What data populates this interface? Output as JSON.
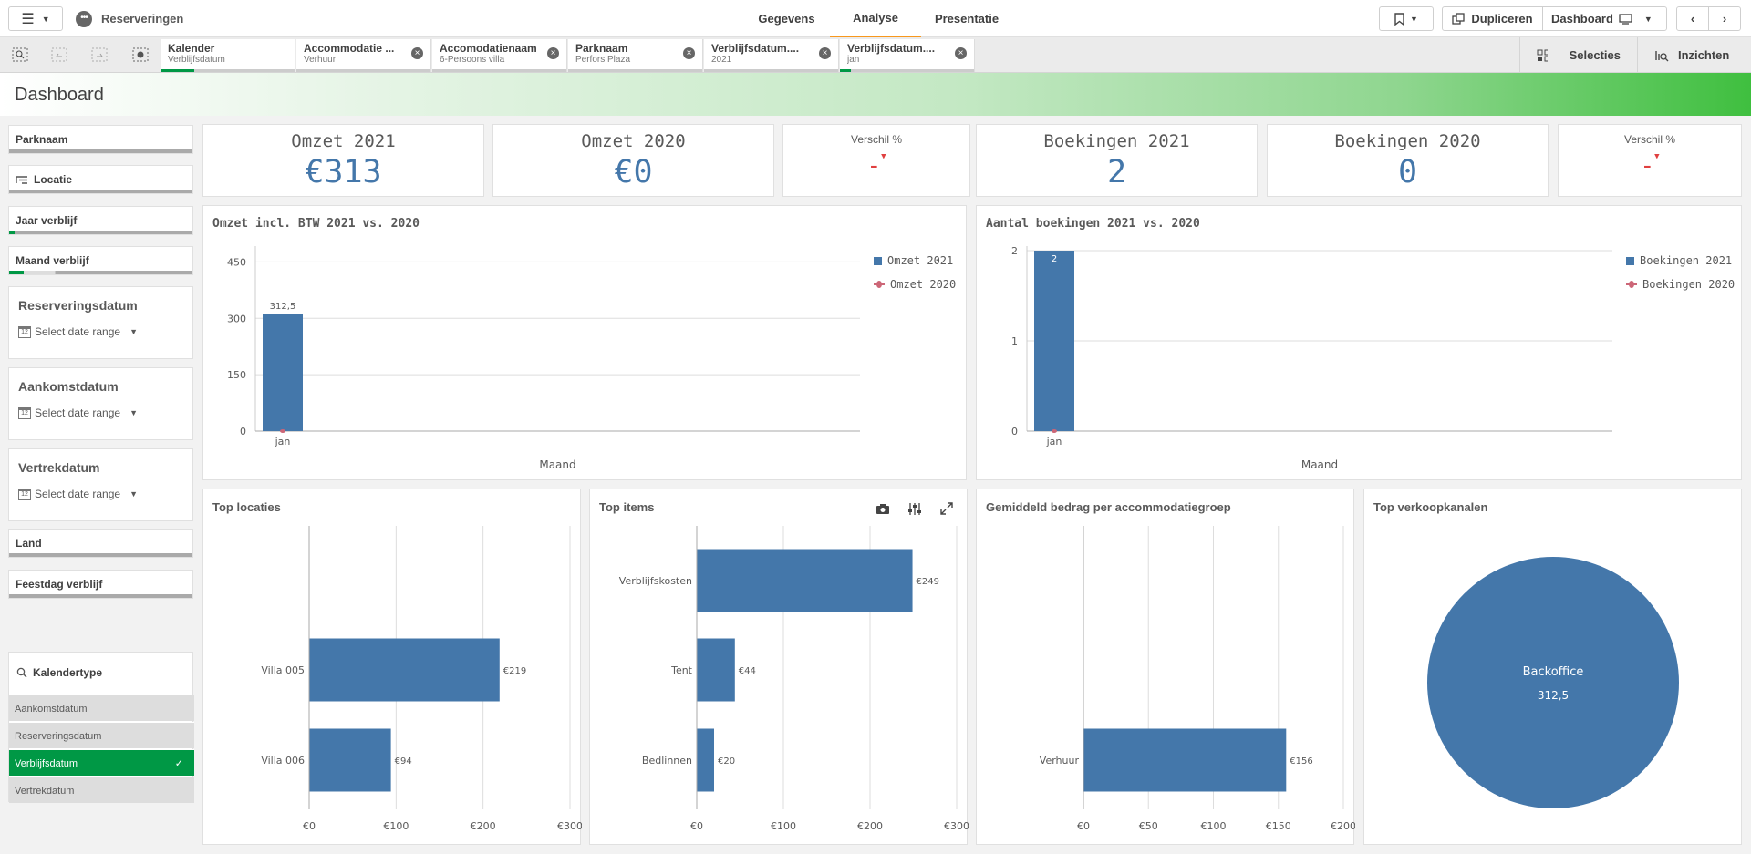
{
  "topbar": {
    "app_name": "Reserveringen",
    "tabs": [
      {
        "label": "Gegevens",
        "active": false
      },
      {
        "label": "Analyse",
        "active": true
      },
      {
        "label": "Presentatie",
        "active": false
      }
    ],
    "duplicate_label": "Dupliceren",
    "sheet_label": "Dashboard"
  },
  "selections_bar": {
    "chips": [
      {
        "field": "Kalender",
        "value": "Verblijfsdatum",
        "green": 0.25,
        "closable": false
      },
      {
        "field": "Accommodatie ...",
        "value": "Verhuur",
        "green": 0,
        "closable": true
      },
      {
        "field": "Accomodatienaam",
        "value": "6-Persoons villa",
        "green": 0,
        "closable": true
      },
      {
        "field": "Parknaam",
        "value": "Perfors Plaza",
        "green": 0,
        "closable": true
      },
      {
        "field": "Verblijfsdatum....",
        "value": "2021",
        "green": 0,
        "closable": true
      },
      {
        "field": "Verblijfsdatum....",
        "value": "jan",
        "green": 0.08,
        "closable": true
      }
    ],
    "selecties_label": "Selecties",
    "inzichten_label": "Inzichten"
  },
  "header": {
    "title": "Dashboard"
  },
  "filters": {
    "parknaam": {
      "label": "Parknaam",
      "green": 0
    },
    "locatie": {
      "label": "Locatie",
      "green": 0
    },
    "jaar": {
      "label": "Jaar verblijf",
      "green": 0.03
    },
    "maand": {
      "label": "Maand verblijf",
      "green": 0.08
    },
    "land": {
      "label": "Land",
      "green": 0
    },
    "feestdag": {
      "label": "Feestdag verblijf",
      "green": 0
    }
  },
  "date_filters": {
    "reserveringsdatum": {
      "title": "Reserveringsdatum",
      "placeholder": "Select date range"
    },
    "aankomstdatum": {
      "title": "Aankomstdatum",
      "placeholder": "Select date range"
    },
    "vertrekdatum": {
      "title": "Vertrekdatum",
      "placeholder": "Select date range"
    }
  },
  "kalendertype": {
    "title": "Kalendertype",
    "items": [
      "Aankomstdatum",
      "Reserveringsdatum",
      "Verblijfsdatum",
      "Vertrekdatum"
    ],
    "selected": "Verblijfsdatum"
  },
  "kpis": {
    "omzet2021": {
      "label": "Omzet 2021",
      "value": "€313"
    },
    "omzet2020": {
      "label": "Omzet 2020",
      "value": "€0"
    },
    "verschil1": {
      "label": "Verschil %",
      "value": "-"
    },
    "boekingen2021": {
      "label": "Boekingen 2021",
      "value": "2"
    },
    "boekingen2020": {
      "label": "Boekingen 2020",
      "value": "0"
    },
    "verschil2": {
      "label": "Verschil %",
      "value": "-"
    }
  },
  "colors": {
    "blue": "#4477aa",
    "red": "#cc6677",
    "green": "#009845"
  },
  "chart_data": [
    {
      "id": "omzet",
      "type": "bar",
      "title": "Omzet incl. BTW 2021 vs. 2020",
      "xlabel": "Maand",
      "categories": [
        "jan"
      ],
      "series": [
        {
          "name": "Omzet 2021",
          "values": [
            312.5
          ]
        },
        {
          "name": "Omzet 2020",
          "values": [
            0
          ]
        }
      ],
      "data_labels": [
        "312,5"
      ],
      "yticks": [
        0,
        150,
        300,
        450
      ],
      "ylim": [
        0,
        480
      ],
      "grid": true,
      "legend": "right"
    },
    {
      "id": "boekingen",
      "type": "bar",
      "title": "Aantal boekingen 2021 vs. 2020",
      "xlabel": "Maand",
      "categories": [
        "jan"
      ],
      "series": [
        {
          "name": "Boekingen 2021",
          "values": [
            2
          ]
        },
        {
          "name": "Boekingen 2020",
          "values": [
            0
          ]
        }
      ],
      "data_labels": [
        "2"
      ],
      "yticks": [
        0,
        1,
        2
      ],
      "ylim": [
        0,
        2
      ],
      "grid": true,
      "legend": "right"
    },
    {
      "id": "toplocaties",
      "type": "bar",
      "orientation": "horizontal",
      "title": "Top locaties",
      "categories": [
        "Villa 005",
        "Villa 006"
      ],
      "values": [
        219,
        94
      ],
      "data_labels": [
        "€219",
        "€94"
      ],
      "xticks": [
        "€0",
        "€100",
        "€200",
        "€300"
      ],
      "xtick_values": [
        0,
        100,
        200,
        300
      ],
      "xlim": [
        0,
        300
      ]
    },
    {
      "id": "topitems",
      "type": "bar",
      "orientation": "horizontal",
      "title": "Top items",
      "categories": [
        "Verblijfskosten",
        "Tent",
        "Bedlinnen"
      ],
      "values": [
        249,
        44,
        20
      ],
      "data_labels": [
        "€249",
        "€44",
        "€20"
      ],
      "xticks": [
        "€0",
        "€100",
        "€200",
        "€300"
      ],
      "xtick_values": [
        0,
        100,
        200,
        300
      ],
      "xlim": [
        0,
        300
      ]
    },
    {
      "id": "gemiddeld",
      "type": "bar",
      "orientation": "horizontal",
      "title": "Gemiddeld bedrag per accommodatiegroep",
      "categories": [
        "Verhuur"
      ],
      "values": [
        156
      ],
      "data_labels": [
        "€156"
      ],
      "xticks": [
        "€0",
        "€50",
        "€100",
        "€150",
        "€200"
      ],
      "xtick_values": [
        0,
        50,
        100,
        150,
        200
      ],
      "xlim": [
        0,
        200
      ]
    },
    {
      "id": "verkoopkanalen",
      "type": "pie",
      "title": "Top verkoopkanalen",
      "categories": [
        "Backoffice"
      ],
      "values": [
        312.5
      ],
      "data_labels": [
        "312,5"
      ]
    }
  ]
}
